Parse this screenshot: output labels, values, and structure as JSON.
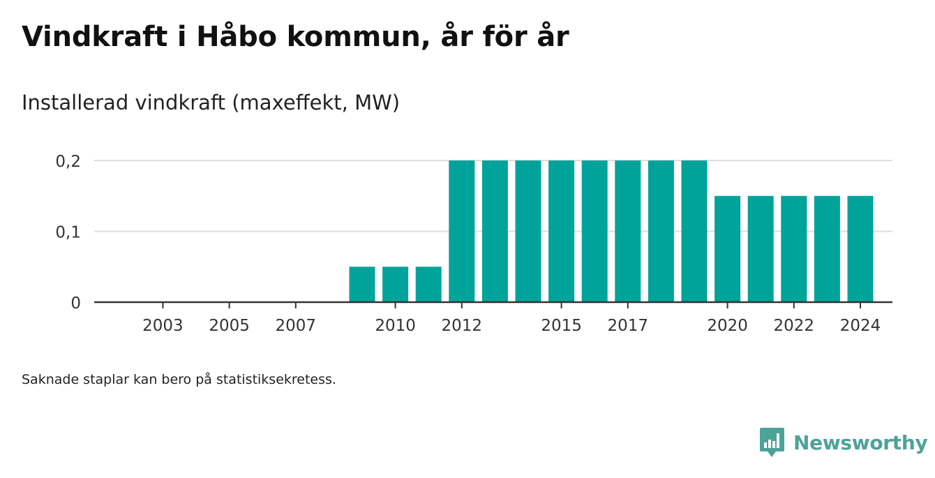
{
  "title": "Vindkraft i Håbo kommun, år för år",
  "subtitle": "Installerad vindkraft (maxeffekt, MW)",
  "footnote": "Saknade staplar kan bero på statistiksekretess.",
  "brand": {
    "name": "Newsworthy",
    "icon": "newsworthy-logo-icon",
    "color": "#4ba39a"
  },
  "chart_data": {
    "type": "bar",
    "title": "Vindkraft i Håbo kommun, år för år",
    "subtitle": "Installerad vindkraft (maxeffekt, MW)",
    "xlabel": "",
    "ylabel": "",
    "categories": [
      "2002",
      "2003",
      "2004",
      "2005",
      "2006",
      "2007",
      "2008",
      "2009",
      "2010",
      "2011",
      "2012",
      "2013",
      "2014",
      "2015",
      "2016",
      "2017",
      "2018",
      "2019",
      "2020",
      "2021",
      "2022",
      "2023",
      "2024"
    ],
    "values": [
      0,
      0,
      0,
      0,
      0,
      0,
      0,
      0.05,
      0.05,
      0.05,
      0.2,
      0.2,
      0.2,
      0.2,
      0.2,
      0.2,
      0.2,
      0.2,
      0.15,
      0.15,
      0.15,
      0.15,
      0.15
    ],
    "x_tick_labels": [
      "2003",
      "2005",
      "2007",
      "2010",
      "2012",
      "2015",
      "2017",
      "2020",
      "2022",
      "2024"
    ],
    "y_tick_values": [
      0,
      0.1,
      0.2
    ],
    "y_tick_labels": [
      "0",
      "0,1",
      "0,2"
    ],
    "ylim": [
      0,
      0.2
    ],
    "grid": true,
    "legend": "none",
    "bar_color": "#00a39a",
    "grid_color": "#dddddd",
    "axis_color": "#333333"
  }
}
